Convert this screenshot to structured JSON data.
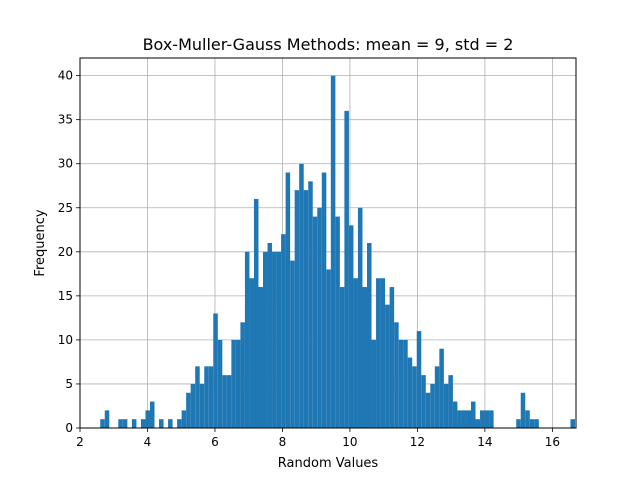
{
  "chart_data": {
    "type": "bar",
    "title": "Box-Muller-Gauss Methods: mean = 9, std = 2",
    "xlabel": "Random Values",
    "ylabel": "Frequency",
    "xlim": [
      2.0,
      16.7
    ],
    "ylim": [
      0,
      42
    ],
    "xticks": [
      2,
      4,
      6,
      8,
      10,
      12,
      14,
      16
    ],
    "yticks": [
      0,
      5,
      10,
      15,
      20,
      25,
      30,
      35,
      40
    ],
    "grid": true,
    "bin_start": 2.6,
    "bin_width": 0.134,
    "values": [
      1,
      2,
      0,
      0,
      1,
      1,
      0,
      1,
      0,
      1,
      2,
      3,
      0,
      1,
      0,
      1,
      0,
      1,
      2,
      4,
      5,
      7,
      5,
      7,
      7,
      13,
      10,
      6,
      6,
      10,
      10,
      12,
      20,
      17,
      26,
      16,
      20,
      21,
      20,
      20,
      22,
      29,
      19,
      27,
      30,
      27,
      28,
      24,
      25,
      29,
      18,
      40,
      24,
      16,
      36,
      23,
      17,
      25,
      16,
      21,
      10,
      17,
      17,
      14,
      16,
      12,
      10,
      10,
      8,
      7,
      11,
      6,
      4,
      5,
      7,
      9,
      5,
      6,
      3,
      2,
      2,
      2,
      3,
      1,
      2,
      2,
      2,
      0,
      0,
      0,
      0,
      0,
      1,
      4,
      2,
      1,
      1,
      0,
      0,
      0,
      0,
      0,
      0,
      0,
      1
    ],
    "color": "#1f77b4"
  }
}
